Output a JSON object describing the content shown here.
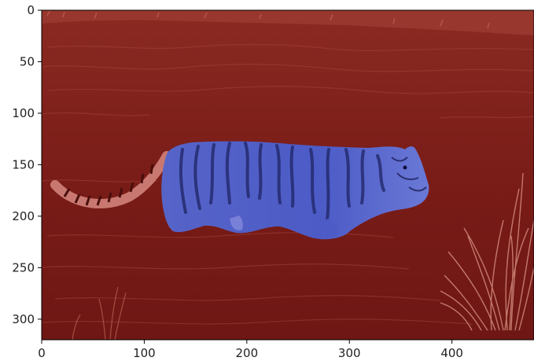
{
  "figure": {
    "image": {
      "scene": "tiger wading in river with grass, segmentation overlay",
      "background_overlay_color": "#7a1414",
      "foreground_overlay_color": "#4f5fd0",
      "classes": [
        "background",
        "tiger"
      ]
    },
    "axes": {
      "x_range": [
        0,
        480
      ],
      "y_range": [
        0,
        320
      ],
      "y_inverted": true,
      "x_ticks": [
        {
          "value": 0,
          "label": "0"
        },
        {
          "value": 100,
          "label": "100"
        },
        {
          "value": 200,
          "label": "200"
        },
        {
          "value": 300,
          "label": "300"
        },
        {
          "value": 400,
          "label": "400"
        }
      ],
      "y_ticks": [
        {
          "value": 0,
          "label": "0"
        },
        {
          "value": 50,
          "label": "50"
        },
        {
          "value": 100,
          "label": "100"
        },
        {
          "value": 150,
          "label": "150"
        },
        {
          "value": 200,
          "label": "200"
        },
        {
          "value": 250,
          "label": "250"
        },
        {
          "value": 300,
          "label": "300"
        }
      ]
    }
  }
}
